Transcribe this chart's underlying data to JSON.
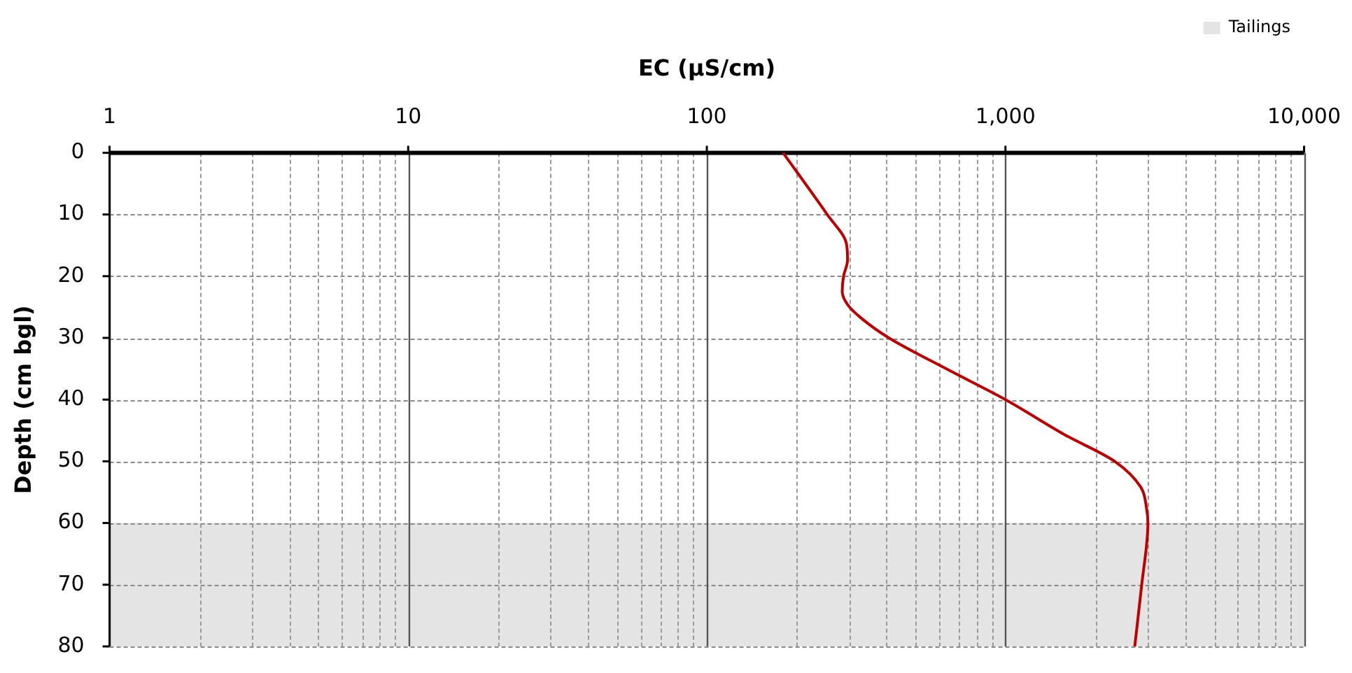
{
  "chart_data": {
    "type": "line",
    "xlabel": "EC (µS/cm)",
    "ylabel": "Depth (cm bgl)",
    "log": "x",
    "xlim": [
      1,
      10000
    ],
    "ylim": [
      80,
      0
    ],
    "xticks": [
      1,
      {
        "value": 2,
        "label": null
      },
      {
        "value": 3,
        "label": null
      },
      {
        "value": 4,
        "label": null
      },
      {
        "value": 5,
        "label": null
      },
      {
        "value": 6,
        "label": null
      },
      {
        "value": 7,
        "label": null
      },
      {
        "value": 8,
        "label": null
      },
      {
        "value": 9,
        "label": null
      },
      10,
      {
        "value": 20,
        "label": null
      },
      {
        "value": 30,
        "label": null
      },
      {
        "value": 40,
        "label": null
      },
      {
        "value": 50,
        "label": null
      },
      {
        "value": 60,
        "label": null
      },
      {
        "value": 70,
        "label": null
      },
      {
        "value": 80,
        "label": null
      },
      {
        "value": 90,
        "label": null
      },
      100,
      {
        "value": 200,
        "label": null
      },
      {
        "value": 300,
        "label": null
      },
      {
        "value": 400,
        "label": null
      },
      {
        "value": 500,
        "label": null
      },
      {
        "value": 600,
        "label": null
      },
      {
        "value": 700,
        "label": null
      },
      {
        "value": 800,
        "label": null
      },
      {
        "value": 900,
        "label": null
      },
      {
        "value": 1000,
        "label": "1,000"
      },
      {
        "value": 2000,
        "label": null
      },
      {
        "value": 3000,
        "label": null
      },
      {
        "value": 4000,
        "label": null
      },
      {
        "value": 5000,
        "label": null
      },
      {
        "value": 6000,
        "label": null
      },
      {
        "value": 7000,
        "label": null
      },
      {
        "value": 8000,
        "label": null
      },
      {
        "value": 9000,
        "label": null
      },
      {
        "value": 10000,
        "label": "10,000"
      }
    ],
    "yticks": [
      0,
      10,
      20,
      30,
      40,
      50,
      60,
      70,
      80
    ],
    "grid": true,
    "legend": "top right",
    "marker": "none",
    "line_style": "solid",
    "bands": [
      {
        "axis": "y",
        "from": 60,
        "to": 80,
        "label": "Tailings",
        "color": "#e4e4e4"
      }
    ],
    "series": [
      {
        "color": "#c00000",
        "x": [
          180,
          253,
          293,
          296,
          287,
          284,
          296,
          327,
          407,
          633,
          1000,
          1580,
          2320,
          2840,
          2970,
          3000,
          2860,
          2710
        ],
        "values": [
          0,
          10,
          14.6,
          17.4,
          20,
          22.5,
          24.6,
          26.7,
          30,
          35,
          40,
          45.7,
          50,
          54.2,
          57.7,
          60,
          70,
          80
        ]
      }
    ]
  }
}
